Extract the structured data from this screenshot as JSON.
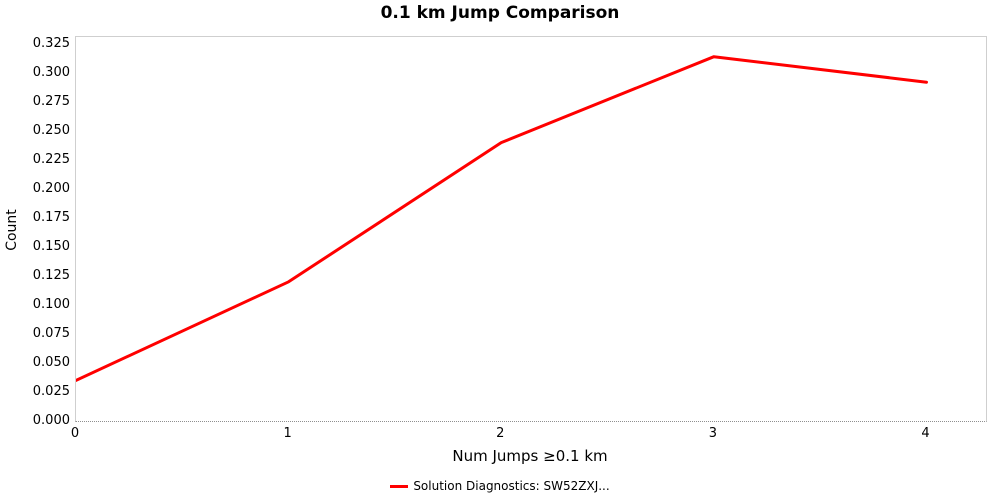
{
  "chart_data": {
    "type": "line",
    "title": "0.1 km Jump Comparison",
    "xlabel": "Num Jumps ≥0.1 km",
    "ylabel": "Count",
    "x": [
      0,
      1,
      2,
      3,
      4
    ],
    "series": [
      {
        "name": "Solution Diagnostics: SW52ZXJ...",
        "values": [
          0.035,
          0.12,
          0.24,
          0.314,
          0.292
        ],
        "color": "#ff0000"
      }
    ],
    "xlim": [
      0,
      4.28
    ],
    "ylim": [
      0,
      0.331
    ],
    "xticks": [
      "0",
      "1",
      "2",
      "3",
      "4"
    ],
    "yticks": [
      "0.000",
      "0.025",
      "0.050",
      "0.075",
      "0.100",
      "0.125",
      "0.150",
      "0.175",
      "0.200",
      "0.225",
      "0.250",
      "0.275",
      "0.300",
      "0.325"
    ],
    "grid": false,
    "legend_position": "bottom"
  }
}
